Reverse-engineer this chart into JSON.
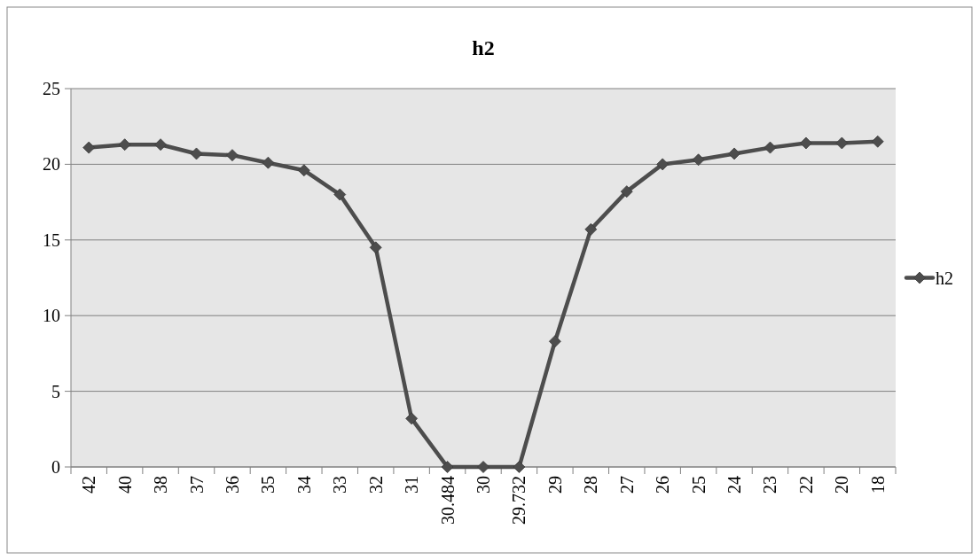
{
  "chart_data": {
    "type": "line",
    "title": "h2",
    "categories": [
      "42",
      "40",
      "38",
      "37",
      "36",
      "35",
      "34",
      "33",
      "32",
      "31",
      "30.484",
      "30",
      "29.732",
      "29",
      "28",
      "27",
      "26",
      "25",
      "24",
      "23",
      "22",
      "20",
      "18"
    ],
    "series": [
      {
        "name": "h2",
        "color": "#4d4d4d",
        "values": [
          21.1,
          21.3,
          21.3,
          20.7,
          20.6,
          20.1,
          19.6,
          18.0,
          14.5,
          3.2,
          0,
          0,
          0,
          8.3,
          15.7,
          18.2,
          20.0,
          20.3,
          20.7,
          21.1,
          21.4,
          21.4,
          21.5
        ]
      }
    ],
    "ylim": [
      0,
      25
    ],
    "yticks": [
      0,
      5,
      10,
      15,
      20,
      25
    ],
    "grid": "y",
    "legend": "right",
    "marker": "diamond",
    "line_style": "solid"
  }
}
